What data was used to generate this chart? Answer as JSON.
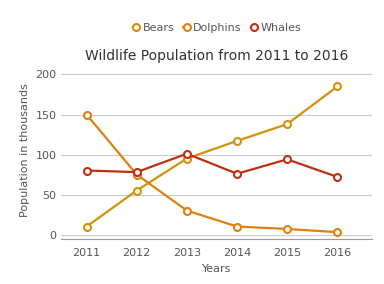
{
  "title": "Wildlife Population from 2011 to 2016",
  "xlabel": "Years",
  "ylabel": "Population in thousands",
  "years": [
    2011,
    2012,
    2013,
    2014,
    2015,
    2016
  ],
  "series": {
    "Bears": {
      "values": [
        10,
        55,
        95,
        117,
        138,
        185
      ],
      "color": "#D4920A",
      "marker": "o",
      "linestyle": "-"
    },
    "Dolphins": {
      "values": [
        150,
        75,
        30,
        10,
        7,
        3
      ],
      "color": "#E08010",
      "marker": "o",
      "linestyle": "-"
    },
    "Whales": {
      "values": [
        80,
        78,
        101,
        76,
        94,
        72
      ],
      "color": "#C03010",
      "marker": "o",
      "linestyle": "-"
    }
  },
  "ylim": [
    -5,
    215
  ],
  "yticks": [
    0,
    50,
    100,
    150,
    200
  ],
  "background_color": "#ffffff",
  "grid_color": "#cccccc",
  "title_fontsize": 10,
  "label_fontsize": 8,
  "tick_fontsize": 8,
  "legend_fontsize": 8
}
